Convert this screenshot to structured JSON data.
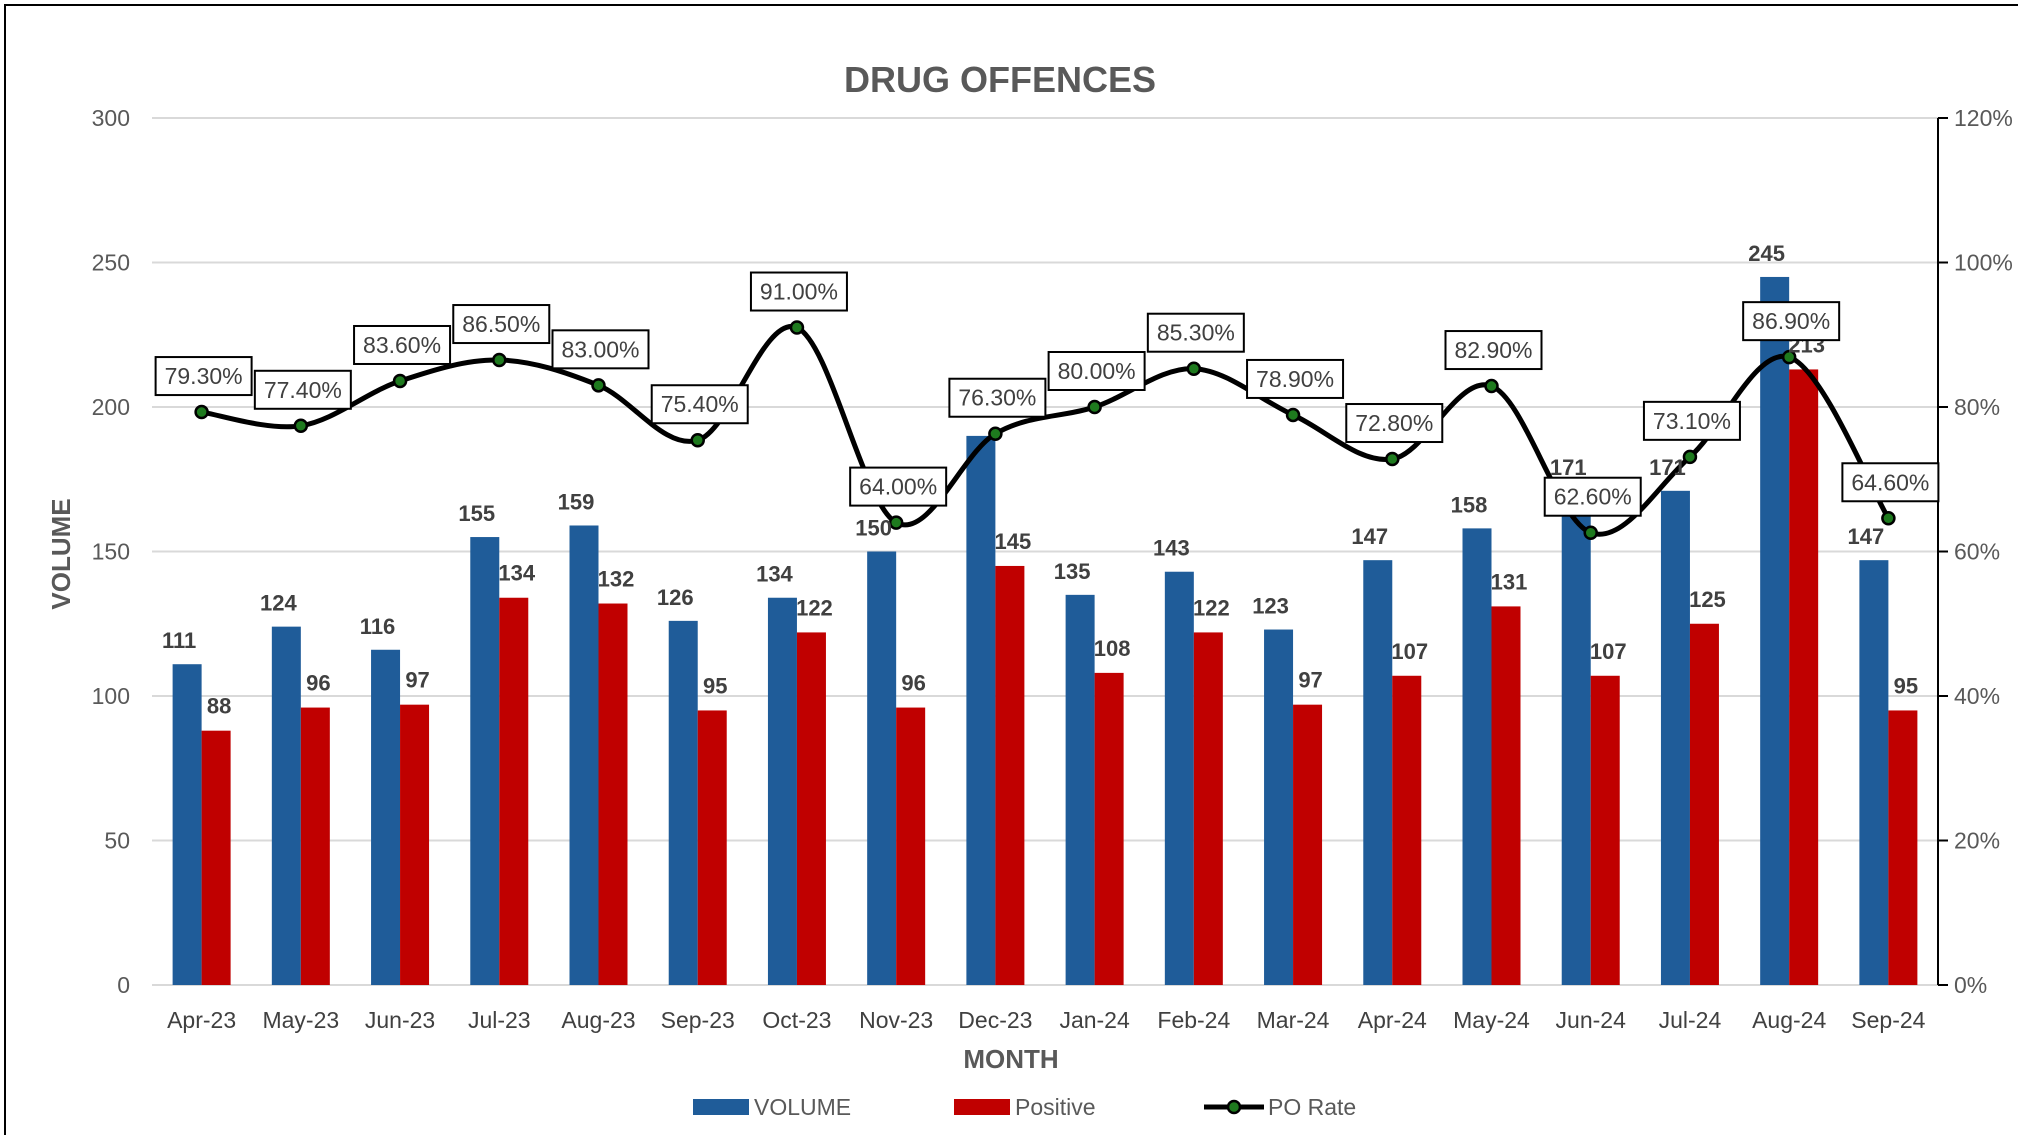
{
  "chart_data": {
    "type": "bar",
    "title": "DRUG OFFENCES",
    "xlabel": "MONTH",
    "ylabel": "VOLUME",
    "ylim": [
      0,
      300
    ],
    "y2lim": [
      0,
      1.2
    ],
    "y_ticks": [
      "0",
      "50",
      "100",
      "150",
      "200",
      "250",
      "300"
    ],
    "y2_ticks": [
      "0%",
      "20%",
      "40%",
      "60%",
      "80%",
      "100%",
      "120%"
    ],
    "grid": true,
    "legend_position": "bottom",
    "categories": [
      "Apr-23",
      "May-23",
      "Jun-23",
      "Jul-23",
      "Aug-23",
      "Sep-23",
      "Oct-23",
      "Nov-23",
      "Dec-23",
      "Jan-24",
      "Feb-24",
      "Mar-24",
      "Apr-24",
      "May-24",
      "Jun-24",
      "Jul-24",
      "Aug-24",
      "Sep-24"
    ],
    "series": [
      {
        "name": "VOLUME",
        "type": "bar",
        "axis": "left",
        "color": "#1F5C99",
        "values": [
          111,
          124,
          116,
          155,
          159,
          126,
          134,
          150,
          190,
          135,
          143,
          123,
          147,
          158,
          171,
          171,
          245,
          147
        ],
        "labels": [
          "111",
          "124",
          "116",
          "155",
          "159",
          "126",
          "134",
          "150",
          "",
          "135",
          "143",
          "123",
          "147",
          "158",
          "171",
          "171",
          "245",
          "147"
        ]
      },
      {
        "name": "Positive",
        "type": "bar",
        "axis": "left",
        "color": "#C00000",
        "values": [
          88,
          96,
          97,
          134,
          132,
          95,
          122,
          96,
          145,
          108,
          122,
          97,
          107,
          131,
          107,
          125,
          213,
          95
        ],
        "labels": [
          "88",
          "96",
          "97",
          "134",
          "132",
          "95",
          "122",
          "96",
          "145",
          "108",
          "122",
          "97",
          "107",
          "131",
          "107",
          "125",
          "213",
          "95"
        ]
      },
      {
        "name": "PO Rate",
        "type": "line",
        "axis": "right",
        "color": "#000000",
        "marker_color": "#1E7A1E",
        "values": [
          0.793,
          0.774,
          0.836,
          0.865,
          0.83,
          0.754,
          0.91,
          0.64,
          0.763,
          0.8,
          0.853,
          0.789,
          0.728,
          0.829,
          0.626,
          0.731,
          0.869,
          0.646
        ],
        "labels": [
          "79.30%",
          "77.40%",
          "83.60%",
          "86.50%",
          "83.00%",
          "75.40%",
          "91.00%",
          "64.00%",
          "76.30%",
          "80.00%",
          "85.30%",
          "78.90%",
          "72.80%",
          "82.90%",
          "62.60%",
          "73.10%",
          "86.90%",
          "64.60%"
        ]
      }
    ]
  }
}
